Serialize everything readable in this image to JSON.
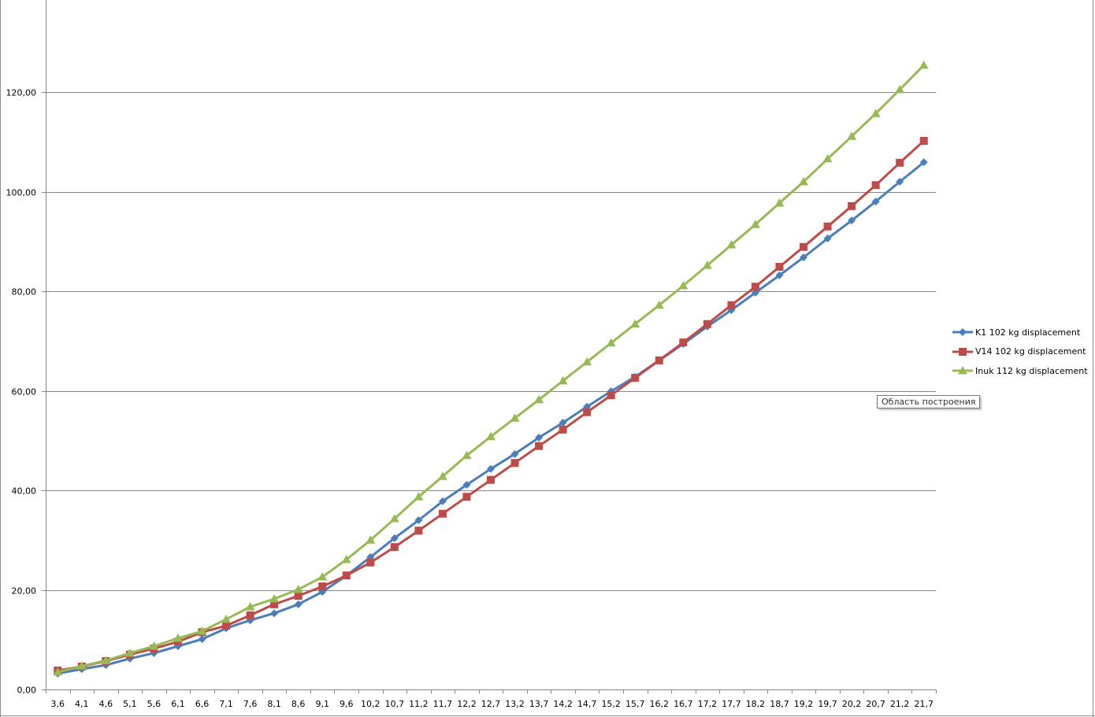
{
  "chart_data": {
    "type": "line",
    "title": "",
    "xlabel": "",
    "ylabel": "",
    "ylim": [
      0,
      140
    ],
    "yticks": [
      "0,00",
      "20,00",
      "40,00",
      "60,00",
      "80,00",
      "100,00",
      "120,00"
    ],
    "ytick_values": [
      0,
      20,
      40,
      60,
      80,
      100,
      120
    ],
    "grid": true,
    "legend_position": "right",
    "categories": [
      "3,6",
      "4,1",
      "4,6",
      "5,1",
      "5,6",
      "6,1",
      "6,6",
      "7,1",
      "7,6",
      "8,1",
      "8,6",
      "9,1",
      "9,6",
      "10,2",
      "10,7",
      "11,2",
      "11,7",
      "12,2",
      "12,7",
      "13,2",
      "13,7",
      "14,2",
      "14,7",
      "15,2",
      "15,7",
      "16,2",
      "16,7",
      "17,2",
      "17,7",
      "18,2",
      "18,7",
      "19,2",
      "19,7",
      "20,2",
      "20,7",
      "21,2",
      "21,7"
    ],
    "series": [
      {
        "name": "K1 102 kg displacement",
        "color": "#4a7ebb",
        "marker": "diamond",
        "values": [
          3.2,
          4.1,
          4.9,
          6.2,
          7.3,
          8.7,
          10.1,
          12.3,
          13.9,
          15.3,
          17.1,
          19.6,
          22.9,
          26.6,
          30.4,
          34.0,
          37.8,
          41.1,
          44.3,
          47.3,
          50.6,
          53.6,
          56.8,
          59.9,
          62.8,
          66.1,
          69.4,
          72.9,
          76.2,
          79.7,
          83.2,
          86.8,
          90.6,
          94.2,
          98.0,
          102.0,
          105.9
        ]
      },
      {
        "name": "V14 102 kg displacement",
        "color": "#be4b48",
        "marker": "square",
        "values": [
          3.8,
          4.6,
          5.7,
          7.0,
          8.2,
          9.6,
          11.5,
          12.8,
          14.9,
          17.1,
          18.8,
          20.7,
          22.9,
          25.5,
          28.6,
          31.9,
          35.3,
          38.7,
          42.1,
          45.5,
          48.9,
          52.2,
          55.7,
          59.1,
          62.6,
          66.1,
          69.7,
          73.4,
          77.2,
          80.9,
          84.9,
          88.9,
          93.0,
          97.1,
          101.3,
          105.8,
          110.2
        ]
      },
      {
        "name": "Inuk 112 kg displacement",
        "color": "#98b954",
        "marker": "triangle",
        "values": [
          3.5,
          4.7,
          5.8,
          7.3,
          8.7,
          10.3,
          11.7,
          14.1,
          16.6,
          18.2,
          20.1,
          22.6,
          26.1,
          30.0,
          34.3,
          38.7,
          42.8,
          47.0,
          50.8,
          54.5,
          58.2,
          62.0,
          65.8,
          69.6,
          73.4,
          77.2,
          81.1,
          85.2,
          89.3,
          93.4,
          97.7,
          102.0,
          106.6,
          111.1,
          115.7,
          120.5,
          125.4
        ]
      }
    ]
  },
  "tooltip": "Область построения"
}
